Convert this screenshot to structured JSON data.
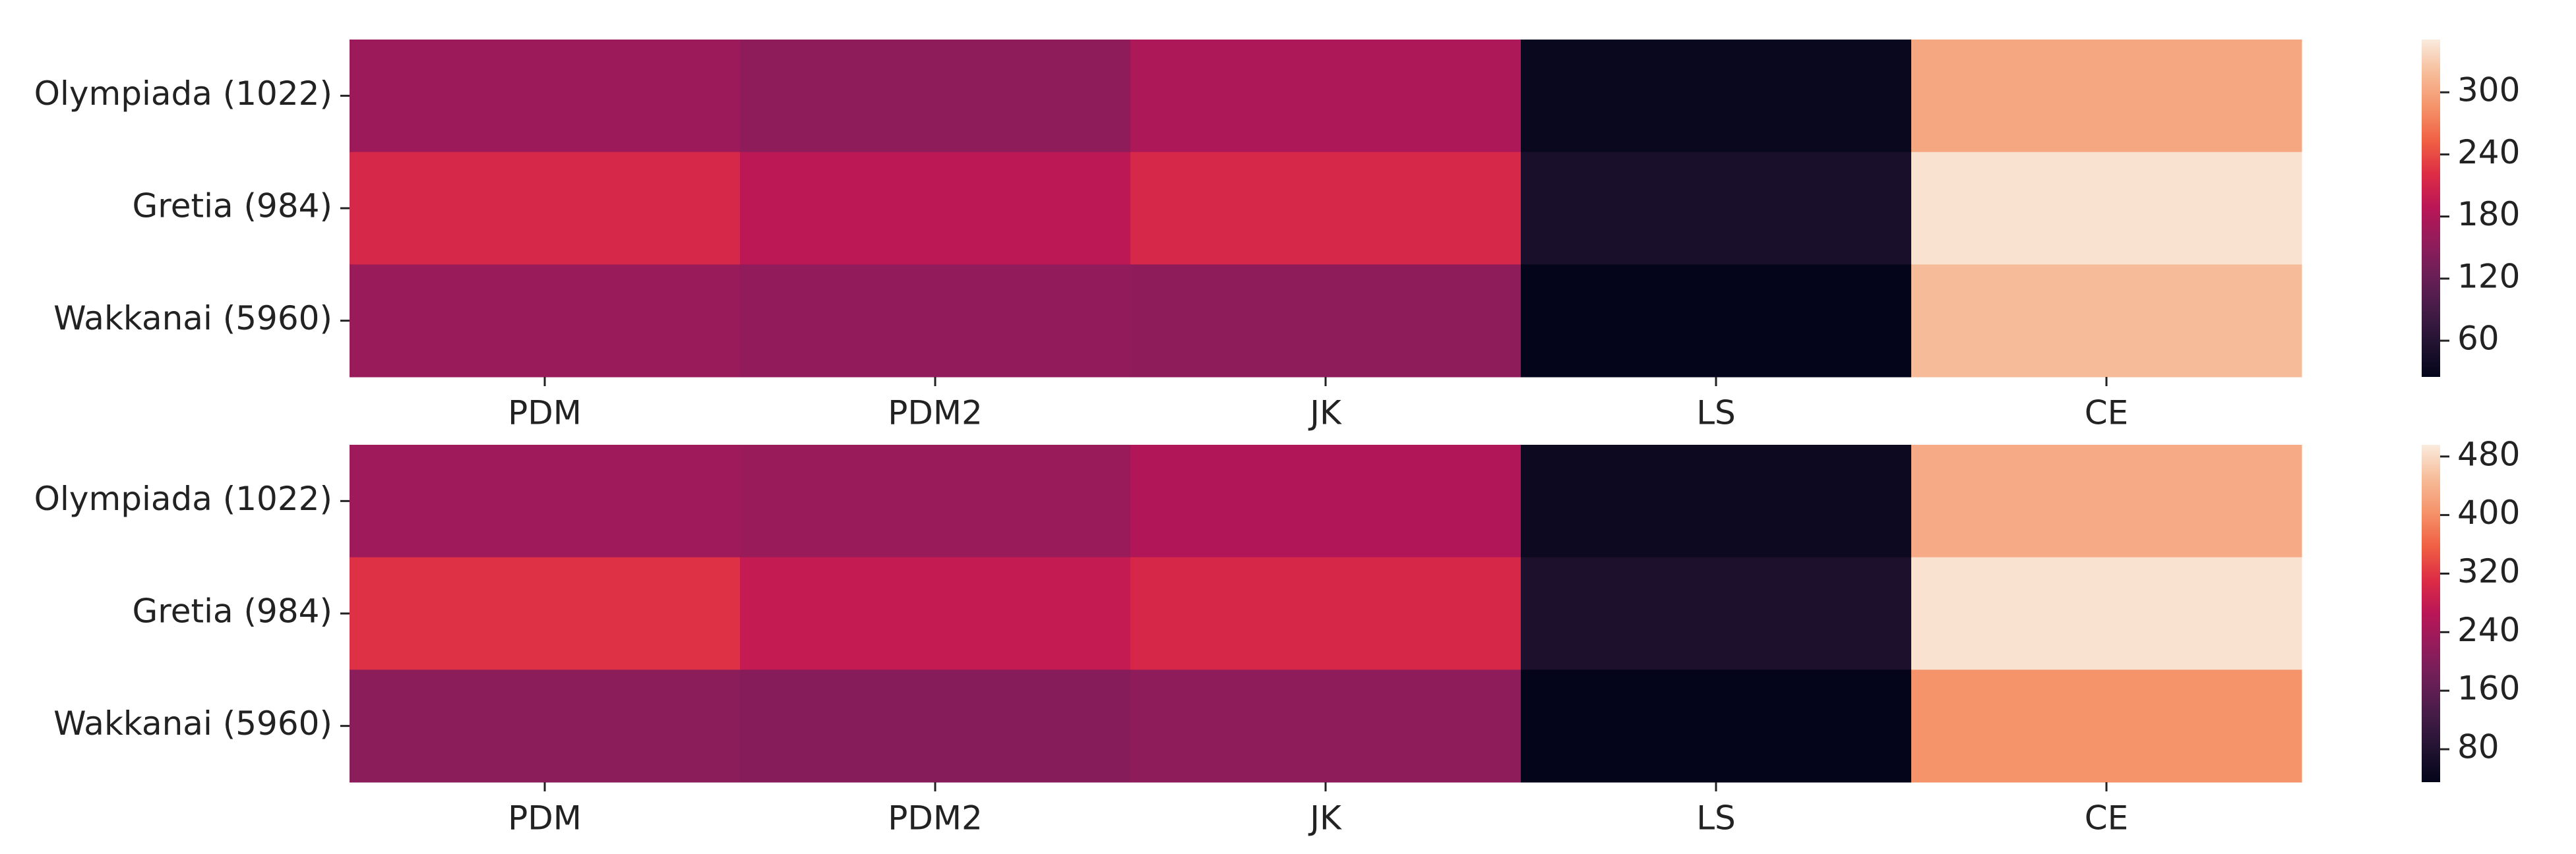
{
  "chart_data": [
    {
      "type": "heatmap",
      "categories": [
        "PDM",
        "PDM2",
        "JK",
        "LS",
        "CE"
      ],
      "rows": [
        "Olympiada (1022)",
        "Gretia (984)",
        "Wakkanai (5960)"
      ],
      "values": [
        [
          165,
          152,
          178,
          32,
          302
        ],
        [
          214,
          191,
          214,
          48,
          345
        ],
        [
          162,
          155,
          152,
          26,
          318
        ]
      ],
      "zlim": [
        25,
        351
      ],
      "zticks": [
        60,
        120,
        180,
        240,
        300
      ],
      "colormap": [
        "#03051a",
        "#221331",
        "#451c47",
        "#6a1f56",
        "#921c5b",
        "#b91657",
        "#dd2c45",
        "#f06043",
        "#f5936a",
        "#f6bc99",
        "#faebdd"
      ]
    },
    {
      "type": "heatmap",
      "categories": [
        "PDM",
        "PDM2",
        "JK",
        "LS",
        "CE"
      ],
      "rows": [
        "Olympiada (1022)",
        "Gretia (984)",
        "Wakkanai (5960)"
      ],
      "values": [
        [
          233,
          229,
          256,
          49,
          431
        ],
        [
          316,
          279,
          302,
          72,
          487
        ],
        [
          210,
          206,
          215,
          36,
          404
        ]
      ],
      "zlim": [
        35,
        496
      ],
      "zticks": [
        80,
        160,
        240,
        320,
        400,
        480
      ],
      "colormap": [
        "#03051a",
        "#221331",
        "#451c47",
        "#6a1f56",
        "#921c5b",
        "#b91657",
        "#dd2c45",
        "#f06043",
        "#f5936a",
        "#f6bc99",
        "#faebdd"
      ]
    }
  ]
}
